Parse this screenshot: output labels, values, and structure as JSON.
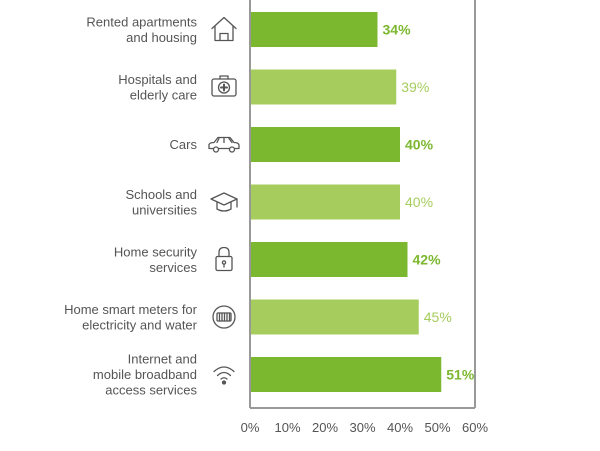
{
  "chart_data": {
    "type": "bar",
    "orientation": "horizontal",
    "categories": [
      [
        "Rented apartments",
        "and housing"
      ],
      [
        "Hospitals and",
        "elderly care"
      ],
      [
        "Cars"
      ],
      [
        "Schools and",
        "universities"
      ],
      [
        "Home security",
        "services"
      ],
      [
        "Home smart meters for",
        "electricity and water"
      ],
      [
        "Internet and",
        "mobile broadband",
        "access services"
      ]
    ],
    "icons": [
      "house-icon",
      "medical-kit-icon",
      "car-icon",
      "graduation-cap-icon",
      "padlock-icon",
      "smart-meter-icon",
      "wifi-icon"
    ],
    "values": [
      34,
      39,
      40,
      40,
      42,
      45,
      51
    ],
    "value_labels": [
      "34%",
      "39%",
      "40%",
      "40%",
      "42%",
      "45%",
      "51%"
    ],
    "bar_colors": [
      "#7cb82f",
      "#a6cc5e",
      "#7cb82f",
      "#a6cc5e",
      "#7cb82f",
      "#a6cc5e",
      "#7cb82f"
    ],
    "label_bold": [
      true,
      false,
      true,
      false,
      true,
      false,
      true
    ],
    "xlim": [
      0,
      60
    ],
    "x_ticks": [
      "0%",
      "10%",
      "20%",
      "30%",
      "40%",
      "50%",
      "60%"
    ],
    "grid": false,
    "axis_color": "#999999"
  }
}
